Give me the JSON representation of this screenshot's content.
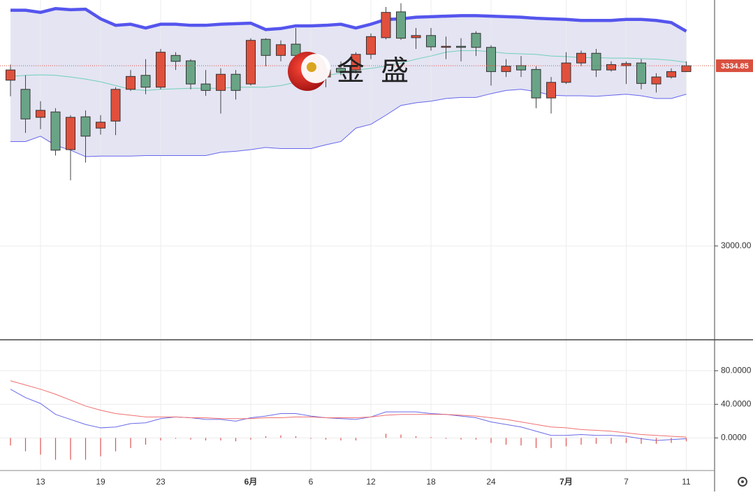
{
  "chart_data": [
    {
      "type": "candlestick",
      "categories": [
        null,
        null,
        "13",
        null,
        null,
        null,
        "19",
        null,
        null,
        null,
        "23",
        null,
        null,
        null,
        null,
        null,
        "6月",
        null,
        null,
        null,
        "6",
        null,
        null,
        null,
        "12",
        null,
        null,
        null,
        "18",
        null,
        null,
        null,
        "24",
        null,
        null,
        null,
        null,
        "7月",
        null,
        null,
        null,
        "7",
        null,
        null,
        null,
        "11"
      ],
      "open": [
        3308,
        3291,
        3239,
        3249,
        3179,
        3240,
        3219,
        3232,
        3291,
        3317,
        3295,
        3354,
        3344,
        3301,
        3289,
        3319,
        3301,
        3384,
        3354,
        3375,
        3353,
        3314,
        3330,
        3327,
        3356,
        3387,
        3435,
        3387,
        3391,
        3370,
        3371,
        3395,
        3369,
        3324,
        3335,
        3328,
        3275,
        3304,
        3340,
        3358,
        3327,
        3335,
        3340,
        3301,
        3314,
        3324
      ],
      "high": [
        3337,
        3317,
        3269,
        3256,
        3243,
        3252,
        3243,
        3295,
        3327,
        3347,
        3366,
        3360,
        3347,
        3327,
        3330,
        3327,
        3386,
        3386,
        3382,
        3405,
        3360,
        3334,
        3343,
        3360,
        3395,
        3444,
        3451,
        3405,
        3405,
        3389,
        3386,
        3399,
        3373,
        3347,
        3353,
        3334,
        3314,
        3360,
        3363,
        3366,
        3343,
        3343,
        3347,
        3321,
        3330,
        3343
      ],
      "low": [
        3278,
        3210,
        3217,
        3168,
        3122,
        3155,
        3207,
        3206,
        3288,
        3282,
        3291,
        3327,
        3291,
        3279,
        3246,
        3272,
        3298,
        3334,
        3343,
        3327,
        3308,
        3295,
        3317,
        3321,
        3347,
        3384,
        3383,
        3366,
        3363,
        3347,
        3343,
        3353,
        3298,
        3314,
        3314,
        3256,
        3246,
        3301,
        3334,
        3314,
        3324,
        3301,
        3291,
        3285,
        3311,
        3323
      ],
      "close": [
        3327,
        3236,
        3252,
        3178,
        3239,
        3204,
        3230,
        3291,
        3315,
        3295,
        3360,
        3343,
        3301,
        3289,
        3319,
        3289,
        3382,
        3354,
        3374,
        3354,
        3314,
        3327,
        3323,
        3356,
        3389,
        3434,
        3386,
        3391,
        3370,
        3371,
        3369,
        3369,
        3324,
        3334,
        3327,
        3275,
        3304,
        3340,
        3358,
        3327,
        3337,
        3339,
        3302,
        3314,
        3324,
        3334.85
      ],
      "up_color": "#e0503c",
      "down_color": "#6aa486",
      "series": [
        {
          "color": "#5555ee",
          "values": [
            3438,
            3438,
            3434,
            3441,
            3439,
            3440,
            3422,
            3410,
            3412,
            3405,
            3412,
            3412,
            3410,
            3410,
            3412,
            3413,
            3414,
            3402,
            3404,
            3409,
            3409,
            3410,
            3412,
            3405,
            3412,
            3421,
            3422,
            3425,
            3426,
            3427,
            3428,
            3428,
            3427,
            3426,
            3425,
            3423,
            3422,
            3421,
            3419,
            3419,
            3419,
            3421,
            3421,
            3419,
            3415,
            3399
          ]
        },
        {
          "color": "#6fd0b8",
          "values": [
            3315,
            3317,
            3318,
            3317,
            3314,
            3310,
            3305,
            3298,
            3291,
            3289,
            3291,
            3292,
            3293,
            3293,
            3293,
            3295,
            3295,
            3295,
            3298,
            3304,
            3309,
            3317,
            3321,
            3327,
            3330,
            3334,
            3340,
            3347,
            3353,
            3360,
            3363,
            3363,
            3361,
            3358,
            3357,
            3356,
            3353,
            3352,
            3350,
            3350,
            3349,
            3349,
            3348,
            3347,
            3345,
            3341
          ]
        },
        {
          "color": "#6666ee",
          "values": [
            3194,
            3194,
            3204,
            3187,
            3178,
            3166,
            3167,
            3167,
            3167,
            3168,
            3168,
            3168,
            3168,
            3168,
            3174,
            3176,
            3179,
            3183,
            3181,
            3181,
            3181,
            3188,
            3194,
            3219,
            3226,
            3243,
            3261,
            3266,
            3269,
            3274,
            3276,
            3276,
            3283,
            3289,
            3291,
            3287,
            3280,
            3279,
            3279,
            3278,
            3280,
            3282,
            3279,
            3274,
            3274,
            3282
          ]
        }
      ],
      "band_fill": "#e4e4f3",
      "last_price": 3334.85,
      "last_price_color": "#d9503f",
      "watermark": "金 盛",
      "ylim": [
        2827,
        3457
      ],
      "yticks": [
        {
          "value": 3000,
          "label": "3000.00"
        }
      ],
      "grid": true
    },
    {
      "type": "macd",
      "series": [
        {
          "color": "#6a6ae8",
          "values": [
            58,
            48,
            41,
            28,
            22,
            16,
            12,
            13,
            17,
            18,
            23,
            25,
            24,
            22,
            22,
            20,
            24,
            26,
            29,
            29,
            26,
            24,
            23,
            22,
            25,
            31,
            31,
            31,
            29,
            28,
            26,
            24,
            19,
            16,
            13,
            8,
            3,
            3,
            4,
            3,
            3,
            2,
            -1,
            -3,
            -2,
            -1
          ]
        },
        {
          "color": "#f07070",
          "values": [
            68,
            63,
            58,
            52,
            45,
            38,
            33,
            29,
            27,
            25,
            25,
            25,
            24,
            24,
            23,
            23,
            23,
            24,
            24,
            25,
            25,
            24,
            24,
            24,
            25,
            27,
            28,
            28,
            28,
            28,
            27,
            26,
            24,
            22,
            19,
            16,
            13,
            12,
            10,
            9,
            8,
            6,
            4,
            3,
            2,
            1
          ]
        }
      ],
      "histogram": {
        "color": "#e05050",
        "values": [
          -9,
          -16,
          -20,
          -26,
          -26,
          -26,
          -22,
          -16,
          -12,
          -8,
          -3,
          -1,
          -2,
          -3,
          -3,
          -4,
          -2,
          2,
          3,
          2,
          -1,
          -2,
          -3,
          -3,
          0,
          5,
          4,
          2,
          1,
          -1,
          -2,
          -2,
          -6,
          -8,
          -9,
          -12,
          -12,
          -10,
          -8,
          -7,
          -7,
          -6,
          -7,
          -7,
          -6,
          -4
        ]
      },
      "ylim": [
        -38,
        116
      ],
      "yticks": [
        {
          "value": 80,
          "label": "80.0000"
        },
        {
          "value": 40,
          "label": "40.0000"
        },
        {
          "value": 0,
          "label": "0.0000"
        }
      ],
      "grid": true
    }
  ]
}
